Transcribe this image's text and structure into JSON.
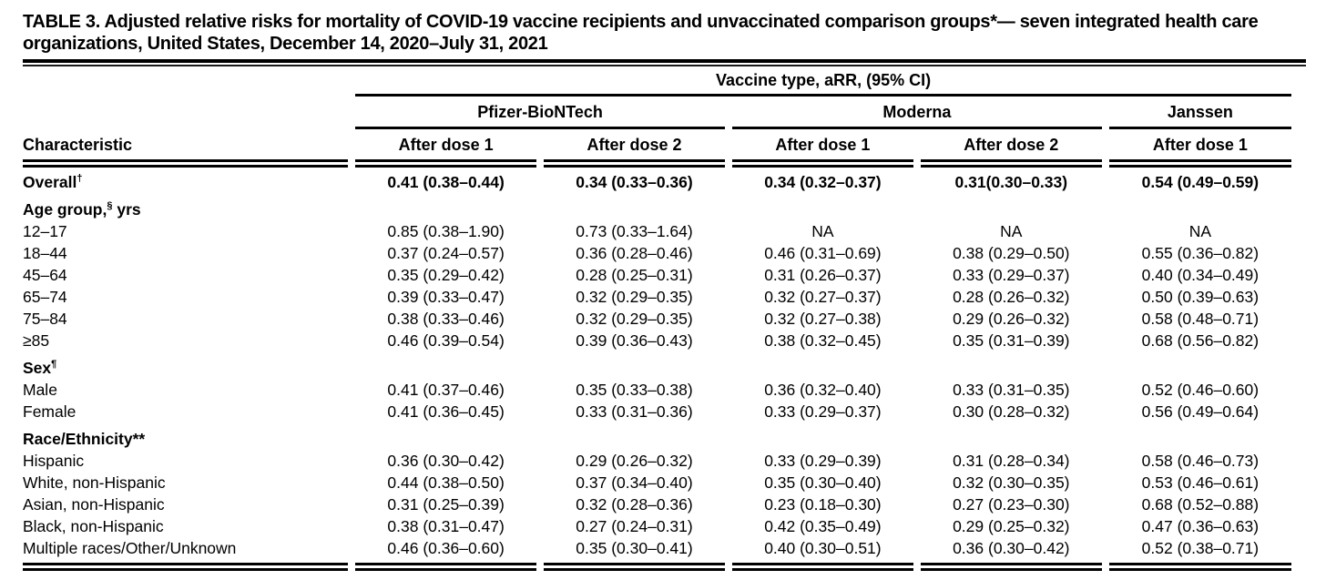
{
  "page": {
    "background": "#ffffff",
    "text_color": "#000000"
  },
  "title": "TABLE 3. Adjusted relative risks for mortality of COVID-19 vaccine recipients and unvaccinated comparison groups*— seven integrated health care organizations, United States, December 14, 2020–July 31, 2021",
  "table": {
    "spanner": "Vaccine type, aRR, (95% CI)",
    "characteristic_header": "Characteristic",
    "groups": [
      {
        "label": "Pfizer-BioNTech",
        "span": 2
      },
      {
        "label": "Moderna",
        "span": 2
      },
      {
        "label": "Janssen",
        "span": 1
      }
    ],
    "column_headers": [
      "After dose 1",
      "After dose 2",
      "After dose 1",
      "After dose 2",
      "After dose 1"
    ],
    "rows": [
      {
        "kind": "data",
        "bold": true,
        "label": "Overall",
        "marker": "†",
        "values": [
          "0.41 (0.38–0.44)",
          "0.34 (0.33–0.36)",
          "0.34 (0.32–0.37)",
          "0.31(0.30–0.33)",
          "0.54 (0.49–0.59)"
        ]
      },
      {
        "kind": "section",
        "label": "Age group,",
        "marker": "§",
        "after": " yrs"
      },
      {
        "kind": "data",
        "label": "12–17",
        "values": [
          "0.85 (0.38–1.90)",
          "0.73 (0.33–1.64)",
          "NA",
          "NA",
          "NA"
        ]
      },
      {
        "kind": "data",
        "label": "18–44",
        "values": [
          "0.37 (0.24–0.57)",
          "0.36 (0.28–0.46)",
          "0.46 (0.31–0.69)",
          "0.38 (0.29–0.50)",
          "0.55 (0.36–0.82)"
        ]
      },
      {
        "kind": "data",
        "label": "45–64",
        "values": [
          "0.35 (0.29–0.42)",
          "0.28 (0.25–0.31)",
          "0.31 (0.26–0.37)",
          "0.33 (0.29–0.37)",
          "0.40 (0.34–0.49)"
        ]
      },
      {
        "kind": "data",
        "label": "65–74",
        "values": [
          "0.39 (0.33–0.47)",
          "0.32 (0.29–0.35)",
          "0.32 (0.27–0.37)",
          "0.28 (0.26–0.32)",
          "0.50 (0.39–0.63)"
        ]
      },
      {
        "kind": "data",
        "label": "75–84",
        "values": [
          "0.38 (0.33–0.46)",
          "0.32 (0.29–0.35)",
          "0.32 (0.27–0.38)",
          "0.29 (0.26–0.32)",
          "0.58 (0.48–0.71)"
        ]
      },
      {
        "kind": "data",
        "label": "≥85",
        "values": [
          "0.46 (0.39–0.54)",
          "0.39 (0.36–0.43)",
          "0.38 (0.32–0.45)",
          "0.35 (0.31–0.39)",
          "0.68 (0.56–0.82)"
        ]
      },
      {
        "kind": "section",
        "label": "Sex",
        "marker": "¶"
      },
      {
        "kind": "data",
        "label": "Male",
        "values": [
          "0.41 (0.37–0.46)",
          "0.35 (0.33–0.38)",
          "0.36 (0.32–0.40)",
          "0.33 (0.31–0.35)",
          "0.52 (0.46–0.60)"
        ]
      },
      {
        "kind": "data",
        "label": "Female",
        "values": [
          "0.41 (0.36–0.45)",
          "0.33 (0.31–0.36)",
          "0.33 (0.29–0.37)",
          "0.30 (0.28–0.32)",
          "0.56 (0.49–0.64)"
        ]
      },
      {
        "kind": "section",
        "label": "Race/Ethnicity**"
      },
      {
        "kind": "data",
        "label": "Hispanic",
        "values": [
          "0.36 (0.30–0.42)",
          "0.29 (0.26–0.32)",
          "0.33 (0.29–0.39)",
          "0.31 (0.28–0.34)",
          "0.58 (0.46–0.73)"
        ]
      },
      {
        "kind": "data",
        "label": "White, non-Hispanic",
        "values": [
          "0.44 (0.38–0.50)",
          "0.37 (0.34–0.40)",
          "0.35 (0.30–0.40)",
          "0.32 (0.30–0.35)",
          "0.53 (0.46–0.61)"
        ]
      },
      {
        "kind": "data",
        "label": "Asian, non-Hispanic",
        "values": [
          "0.31 (0.25–0.39)",
          "0.32 (0.28–0.36)",
          "0.23 (0.18–0.30)",
          "0.27 (0.23–0.30)",
          "0.68 (0.52–0.88)"
        ]
      },
      {
        "kind": "data",
        "label": "Black, non-Hispanic",
        "values": [
          "0.38 (0.31–0.47)",
          "0.27 (0.24–0.31)",
          "0.42 (0.35–0.49)",
          "0.29 (0.25–0.32)",
          "0.47 (0.36–0.63)"
        ]
      },
      {
        "kind": "data",
        "label": "Multiple races/Other/Unknown",
        "values": [
          "0.46 (0.36–0.60)",
          "0.35 (0.30–0.41)",
          "0.40 (0.30–0.51)",
          "0.36 (0.30–0.42)",
          "0.52 (0.38–0.71)"
        ]
      }
    ]
  }
}
